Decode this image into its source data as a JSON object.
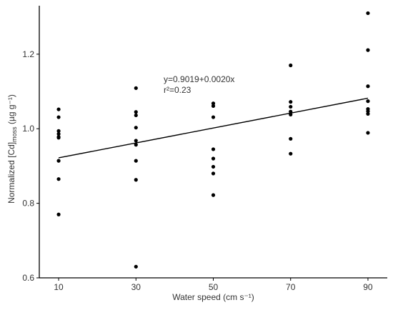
{
  "chart_data": {
    "type": "scatter",
    "xlabel": "Water speed (cm s⁻¹)",
    "ylabel": {
      "prefix": "Normalized [Cd]",
      "subscript": "moss",
      "suffix": " (µg g⁻¹)"
    },
    "x_ticks": [
      10,
      30,
      50,
      70,
      90
    ],
    "y_ticks": [
      0.6,
      0.8,
      1.0,
      1.2
    ],
    "y_tick_labels": [
      "0.6",
      "0.8",
      "1.0",
      "1.2"
    ],
    "xlim": [
      5,
      95
    ],
    "ylim": [
      0.6,
      1.33
    ],
    "grid": false,
    "points": [
      {
        "x": 10,
        "y": 1.052
      },
      {
        "x": 10,
        "y": 1.031
      },
      {
        "x": 10,
        "y": 0.994
      },
      {
        "x": 10,
        "y": 0.986
      },
      {
        "x": 10,
        "y": 0.978
      },
      {
        "x": 10,
        "y": 0.976
      },
      {
        "x": 10,
        "y": 0.914
      },
      {
        "x": 10,
        "y": 0.865
      },
      {
        "x": 10,
        "y": 0.77
      },
      {
        "x": 30,
        "y": 1.109
      },
      {
        "x": 30,
        "y": 1.045
      },
      {
        "x": 30,
        "y": 1.036
      },
      {
        "x": 30,
        "y": 1.003
      },
      {
        "x": 30,
        "y": 0.968
      },
      {
        "x": 30,
        "y": 0.957
      },
      {
        "x": 30,
        "y": 0.914
      },
      {
        "x": 30,
        "y": 0.863
      },
      {
        "x": 30,
        "y": 0.63
      },
      {
        "x": 50,
        "y": 1.068
      },
      {
        "x": 50,
        "y": 1.061
      },
      {
        "x": 50,
        "y": 1.031
      },
      {
        "x": 50,
        "y": 0.945
      },
      {
        "x": 50,
        "y": 0.92
      },
      {
        "x": 50,
        "y": 0.898
      },
      {
        "x": 50,
        "y": 0.88
      },
      {
        "x": 50,
        "y": 0.822
      },
      {
        "x": 70,
        "y": 1.17
      },
      {
        "x": 70,
        "y": 1.072
      },
      {
        "x": 70,
        "y": 1.059
      },
      {
        "x": 70,
        "y": 1.046
      },
      {
        "x": 70,
        "y": 1.038
      },
      {
        "x": 70,
        "y": 0.973
      },
      {
        "x": 70,
        "y": 0.933
      },
      {
        "x": 90,
        "y": 1.31
      },
      {
        "x": 90,
        "y": 1.211
      },
      {
        "x": 90,
        "y": 1.114
      },
      {
        "x": 90,
        "y": 1.074
      },
      {
        "x": 90,
        "y": 1.053
      },
      {
        "x": 90,
        "y": 1.047
      },
      {
        "x": 90,
        "y": 1.04
      },
      {
        "x": 90,
        "y": 0.989
      }
    ],
    "regression": {
      "intercept": 0.9019,
      "slope": 0.002,
      "x_range": [
        10,
        90
      ],
      "equation_label": "y=0.9019+0.0020x",
      "r2_label": "r²=0.23"
    }
  }
}
